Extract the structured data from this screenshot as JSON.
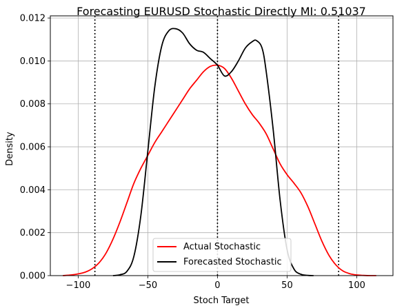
{
  "chart_data": {
    "type": "line",
    "title": "Forecasting EURUSD Stochastic Directly MI: 0.51037",
    "xlabel": "Stoch Target",
    "ylabel": "Density",
    "xlim": [
      -120,
      126
    ],
    "ylim": [
      0,
      0.0121
    ],
    "x_ticks": [
      -100,
      -50,
      0,
      50,
      100
    ],
    "x_tick_labels": [
      "−100",
      "−50",
      "0",
      "50",
      "100"
    ],
    "y_ticks": [
      0,
      0.002,
      0.004,
      0.006,
      0.008,
      0.01,
      0.012
    ],
    "y_tick_labels": [
      "0.000",
      "0.002",
      "0.004",
      "0.006",
      "0.008",
      "0.010",
      "0.012"
    ],
    "grid": true,
    "legend_position": "bottom-center",
    "vertical_lines": [
      {
        "x": -88,
        "style": "dotted",
        "color": "#000000"
      },
      {
        "x": 0,
        "style": "dotted",
        "color": "#000000"
      },
      {
        "x": 87,
        "style": "dotted",
        "color": "#000000"
      }
    ],
    "series": [
      {
        "name": "Actual Stochastic",
        "color": "#ff0000",
        "x": [
          -111,
          -105,
          -100,
          -95,
          -90,
          -85,
          -80,
          -75,
          -70,
          -65,
          -60,
          -55,
          -50,
          -45,
          -40,
          -35,
          -30,
          -25,
          -20,
          -15,
          -10,
          -5,
          0,
          5,
          10,
          15,
          20,
          25,
          30,
          35,
          40,
          45,
          50,
          55,
          60,
          65,
          70,
          75,
          80,
          85,
          90,
          95,
          100,
          105,
          110,
          114
        ],
        "y": [
          0.0,
          3e-05,
          8e-05,
          0.00016,
          0.00032,
          0.0006,
          0.00105,
          0.0017,
          0.0025,
          0.0034,
          0.0043,
          0.005,
          0.0056,
          0.0062,
          0.0067,
          0.0072,
          0.0077,
          0.0082,
          0.0087,
          0.0091,
          0.0095,
          0.00975,
          0.0098,
          0.00965,
          0.0092,
          0.0086,
          0.008,
          0.0075,
          0.0071,
          0.0066,
          0.0059,
          0.0052,
          0.0047,
          0.0043,
          0.00385,
          0.0032,
          0.0024,
          0.0016,
          0.00095,
          0.0005,
          0.00022,
          9e-05,
          3e-05,
          1e-05,
          0.0,
          0.0
        ]
      },
      {
        "name": "Forecasted Stochastic",
        "color": "#000000",
        "x": [
          -75,
          -70,
          -65,
          -60,
          -55,
          -50,
          -45,
          -40,
          -35,
          -30,
          -25,
          -20,
          -15,
          -10,
          -5,
          0,
          5,
          10,
          15,
          20,
          25,
          28,
          32,
          35,
          40,
          45,
          50,
          55,
          60,
          65,
          69
        ],
        "y": [
          0.0,
          4e-05,
          0.0002,
          0.0009,
          0.0028,
          0.0058,
          0.0088,
          0.0107,
          0.0114,
          0.0115,
          0.0113,
          0.0108,
          0.0105,
          0.0104,
          0.0101,
          0.0098,
          0.0093,
          0.0095,
          0.01,
          0.0106,
          0.0109,
          0.01095,
          0.0106,
          0.0095,
          0.0068,
          0.0035,
          0.0012,
          0.0003,
          6e-05,
          1e-05,
          0.0
        ]
      }
    ]
  }
}
